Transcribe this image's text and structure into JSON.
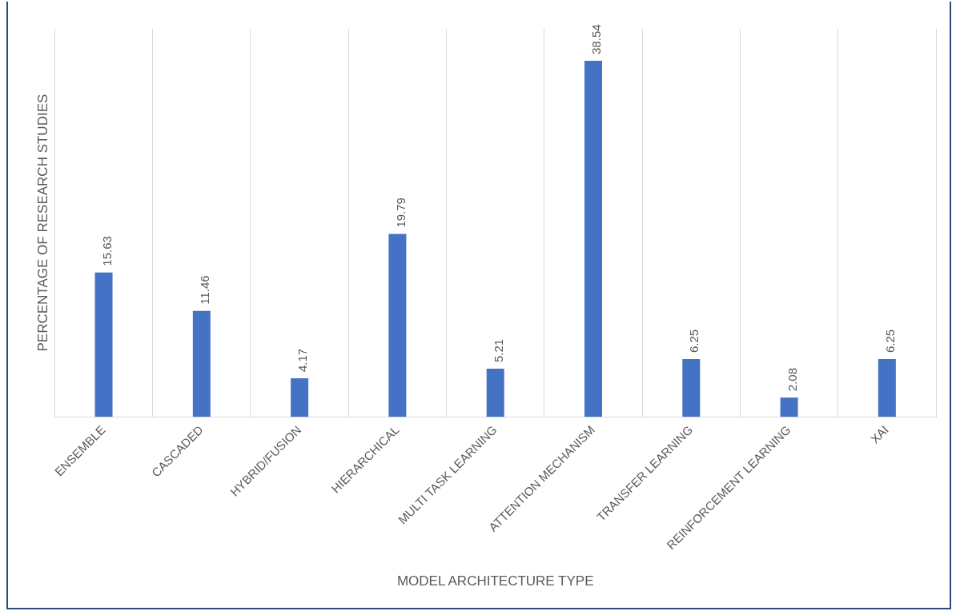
{
  "chart_data": {
    "type": "bar",
    "xlabel": "MODEL ARCHITECTURE TYPE",
    "ylabel": "PERCENTAGE OF RESEARCH STUDIES",
    "categories": [
      "ENSEMBLE",
      "CASCADED",
      "HYBRID/FUSION",
      "HIERARCHICAL",
      "MULTI TASK LEARNING",
      "ATTENTION MECHANISM",
      "TRANSFER LEARNING",
      "REINFORCEMENT LEARNING",
      "XAI"
    ],
    "values": [
      15.63,
      11.46,
      4.17,
      19.79,
      5.21,
      38.54,
      6.25,
      2.08,
      6.25
    ],
    "color": "#4472c4",
    "ylim": [
      0,
      42
    ],
    "tick_labels": "x",
    "grid": "x",
    "data_labels": true
  }
}
